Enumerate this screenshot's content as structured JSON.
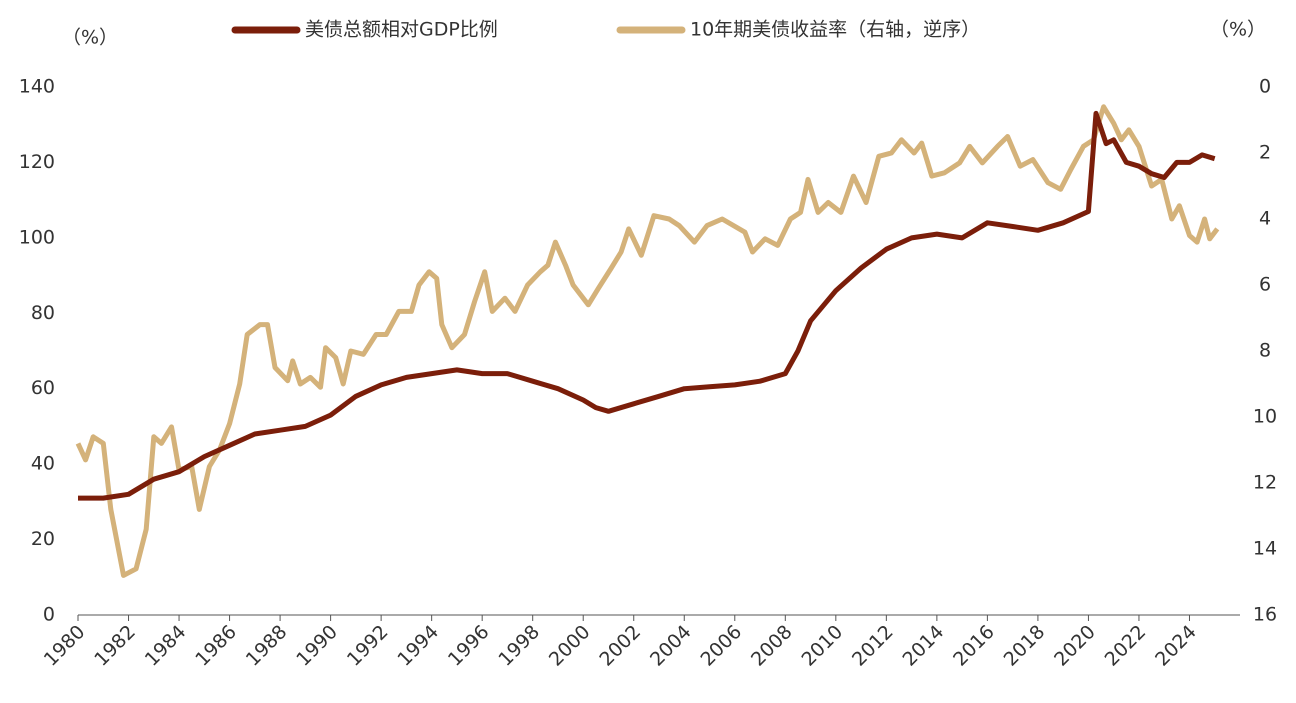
{
  "chart_data": {
    "type": "line",
    "y_label": "（%）",
    "y2_label": "（%）",
    "xlim": [
      1980,
      2026
    ],
    "xticks": [
      1980,
      1982,
      1984,
      1986,
      1988,
      1990,
      1992,
      1994,
      1996,
      1998,
      2000,
      2002,
      2004,
      2006,
      2008,
      2010,
      2012,
      2014,
      2016,
      2018,
      2020,
      2022,
      2024
    ],
    "ylim": [
      0,
      140
    ],
    "yticks": [
      0,
      20,
      40,
      60,
      80,
      100,
      120,
      140
    ],
    "y2lim": [
      16,
      0
    ],
    "y2ticks": [
      0,
      2,
      4,
      6,
      8,
      10,
      12,
      14,
      16
    ],
    "series": [
      {
        "name": "美债总额相对GDP比例",
        "color": "#7b1e0a",
        "x": [
          1980,
          1981,
          1982,
          1983,
          1984,
          1985,
          1986,
          1987,
          1988,
          1989,
          1990,
          1991,
          1992,
          1993,
          1994,
          1995,
          1996,
          1997,
          1998,
          1999,
          2000,
          2000.5,
          2001,
          2002,
          2003,
          2004,
          2005,
          2006,
          2007,
          2008,
          2008.5,
          2009,
          2010,
          2011,
          2012,
          2013,
          2014,
          2015,
          2016,
          2017,
          2018,
          2019,
          2020,
          2020.3,
          2020.7,
          2021,
          2021.5,
          2022,
          2022.5,
          2023,
          2023.5,
          2024,
          2024.5,
          2025
        ],
        "values": [
          31,
          31,
          32,
          36,
          38,
          42,
          45,
          48,
          49,
          50,
          53,
          58,
          61,
          63,
          64,
          65,
          64,
          64,
          62,
          60,
          57,
          55,
          54,
          56,
          58,
          60,
          60.5,
          61,
          62,
          64,
          70,
          78,
          86,
          92,
          97,
          100,
          101,
          100,
          104,
          103,
          102,
          104,
          107,
          133,
          125,
          126,
          120,
          119,
          117,
          116,
          120,
          120,
          122,
          121
        ]
      },
      {
        "name": "10年期美债收益率（右轴，逆序）",
        "color": "#d4b27a",
        "axis": "y2",
        "x": [
          1980,
          1980.3,
          1980.6,
          1981,
          1981.3,
          1981.8,
          1982.3,
          1982.7,
          1983,
          1983.3,
          1983.7,
          1984,
          1984.5,
          1984.8,
          1985.2,
          1985.6,
          1986,
          1986.4,
          1986.7,
          1987.2,
          1987.5,
          1987.8,
          1988.3,
          1988.5,
          1988.8,
          1989.2,
          1989.6,
          1989.8,
          1990.2,
          1990.5,
          1990.8,
          1991.3,
          1991.8,
          1992.2,
          1992.7,
          1993.2,
          1993.5,
          1993.9,
          1994.2,
          1994.4,
          1994.8,
          1995.3,
          1995.7,
          1996.1,
          1996.4,
          1996.9,
          1997.3,
          1997.8,
          1998.3,
          1998.6,
          1998.9,
          1999.3,
          1999.6,
          2000.2,
          2000.6,
          2001.1,
          2001.5,
          2001.8,
          2002.3,
          2002.8,
          2003.4,
          2003.8,
          2004.4,
          2004.9,
          2005.5,
          2006.4,
          2006.7,
          2007.2,
          2007.7,
          2008.2,
          2008.6,
          2008.9,
          2009.3,
          2009.7,
          2010.2,
          2010.7,
          2011.2,
          2011.7,
          2012.2,
          2012.6,
          2013.1,
          2013.4,
          2013.8,
          2014.3,
          2014.9,
          2015.3,
          2015.8,
          2016.4,
          2016.8,
          2017.3,
          2017.8,
          2018.4,
          2018.9,
          2019.3,
          2019.8,
          2020.2,
          2020.6,
          2021,
          2021.3,
          2021.6,
          2022,
          2022.5,
          2022.9,
          2023.3,
          2023.6,
          2024,
          2024.3,
          2024.6,
          2024.8,
          2025.1
        ],
        "values": [
          10.8,
          11.3,
          10.6,
          10.8,
          12.8,
          14.8,
          14.6,
          13.4,
          10.6,
          10.8,
          10.3,
          11.6,
          11.5,
          12.8,
          11.5,
          11.0,
          10.2,
          9.0,
          7.5,
          7.2,
          7.2,
          8.5,
          8.9,
          8.3,
          9.0,
          8.8,
          9.1,
          7.9,
          8.2,
          9.0,
          8.0,
          8.1,
          7.5,
          7.5,
          6.8,
          6.8,
          6.0,
          5.6,
          5.8,
          7.2,
          7.9,
          7.5,
          6.5,
          5.6,
          6.8,
          6.4,
          6.8,
          6.0,
          5.6,
          5.4,
          4.7,
          5.4,
          6.0,
          6.6,
          6.1,
          5.5,
          5.0,
          4.3,
          5.1,
          3.9,
          4.0,
          4.2,
          4.7,
          4.2,
          4.0,
          4.4,
          5.0,
          4.6,
          4.8,
          4.0,
          3.8,
          2.8,
          3.8,
          3.5,
          3.8,
          2.7,
          3.5,
          2.1,
          2.0,
          1.6,
          2.0,
          1.7,
          2.7,
          2.6,
          2.3,
          1.8,
          2.3,
          1.8,
          1.5,
          2.4,
          2.2,
          2.9,
          3.1,
          2.5,
          1.8,
          1.6,
          0.6,
          1.1,
          1.6,
          1.3,
          1.8,
          3.0,
          2.8,
          4.0,
          3.6,
          4.5,
          4.7,
          4.0,
          4.6,
          4.3
        ]
      }
    ]
  }
}
